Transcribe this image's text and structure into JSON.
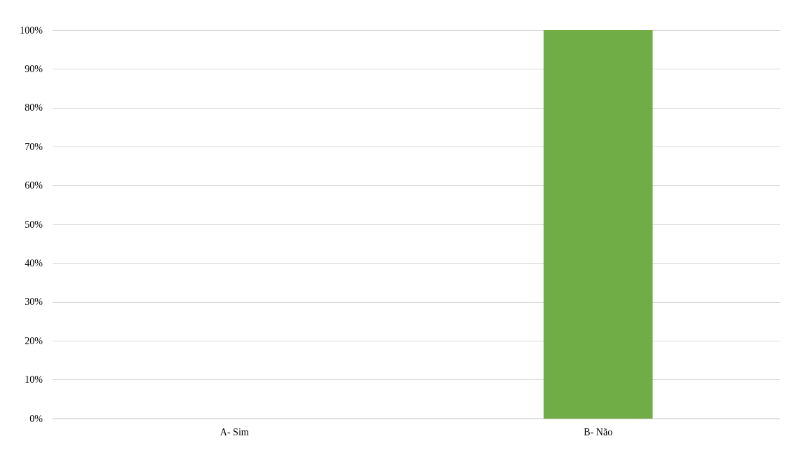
{
  "chart_data": {
    "type": "bar",
    "categories": [
      "A- Sim",
      "B- Não"
    ],
    "values": [
      0,
      100
    ],
    "color": "#70ad47",
    "ylim": [
      0,
      100
    ],
    "yticks": [
      {
        "value": 0,
        "label": "0%"
      },
      {
        "value": 10,
        "label": "10%"
      },
      {
        "value": 20,
        "label": "20%"
      },
      {
        "value": 30,
        "label": "30%"
      },
      {
        "value": 40,
        "label": "40%"
      },
      {
        "value": 50,
        "label": "50%"
      },
      {
        "value": 60,
        "label": "60%"
      },
      {
        "value": 70,
        "label": "70%"
      },
      {
        "value": 80,
        "label": "80%"
      },
      {
        "value": 90,
        "label": "90%"
      },
      {
        "value": 100,
        "label": "100%"
      }
    ],
    "grid": "y"
  }
}
